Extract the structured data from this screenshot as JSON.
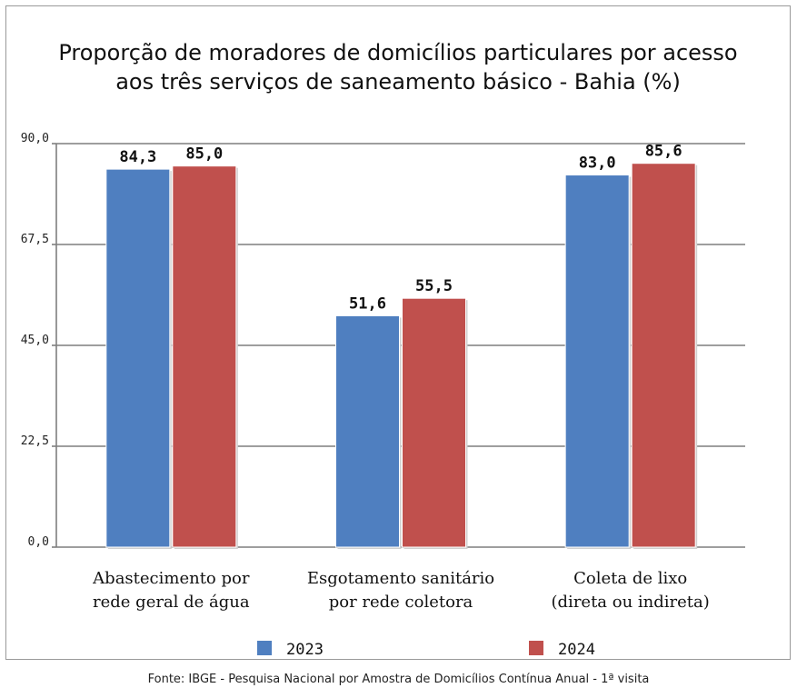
{
  "chart_data": {
    "type": "bar",
    "title": [
      "Proporção de moradores de domicílios particulares por acesso",
      "aos três serviços de saneamento básico - Bahia (%)"
    ],
    "categories": [
      [
        "Abastecimento por",
        "rede geral de água"
      ],
      [
        "Esgotamento sanitário",
        "por rede coletora"
      ],
      [
        "Coleta de lixo",
        "(direta ou indireta)"
      ]
    ],
    "series": [
      {
        "name": "2023",
        "color": "#4f7fc0",
        "values": [
          84.3,
          51.6,
          83.0
        ],
        "labels": [
          "84,3",
          "51,6",
          "83,0"
        ]
      },
      {
        "name": "2024",
        "color": "#c0504d",
        "values": [
          85.0,
          55.5,
          85.6
        ],
        "labels": [
          "85,0",
          "55,5",
          "85,6"
        ]
      }
    ],
    "ylim": [
      0,
      90
    ],
    "yticks": [
      0,
      22.5,
      45,
      67.5,
      90
    ],
    "ytick_labels": [
      "0,0",
      "22,5",
      "45,0",
      "67,5",
      "90,0"
    ],
    "grid": true,
    "legend": "bottom",
    "xlabel": "",
    "ylabel": ""
  },
  "source": "Fonte: IBGE - Pesquisa Nacional por Amostra de Domicílios Contínua Anual - 1ª visita"
}
